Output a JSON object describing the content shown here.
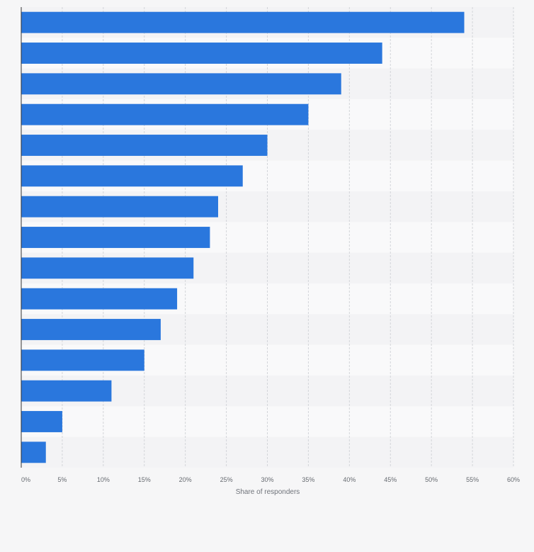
{
  "chart_data": {
    "type": "bar",
    "orientation": "horizontal",
    "title": "",
    "xlabel": "Share of responders",
    "ylabel": "",
    "xlim": [
      0,
      60
    ],
    "x_ticks": [
      "0%",
      "5%",
      "10%",
      "15%",
      "20%",
      "25%",
      "30%",
      "35%",
      "40%",
      "45%",
      "50%",
      "55%",
      "60%"
    ],
    "grid": true,
    "legend": "none",
    "category_labels_visible": false,
    "values": [
      54,
      44,
      39,
      35,
      30,
      27,
      24,
      23,
      21,
      19,
      17,
      15,
      11,
      5,
      3
    ],
    "bar_color": "#2a77dd"
  }
}
